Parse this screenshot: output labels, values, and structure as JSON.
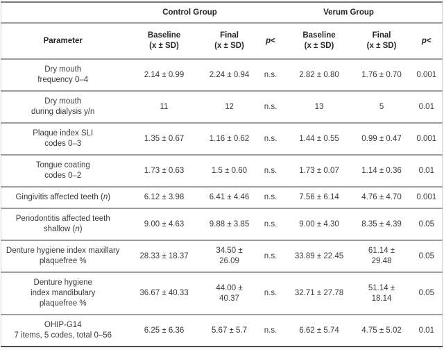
{
  "table": {
    "group_header": {
      "control": "Control Group",
      "verum": "Verum Group"
    },
    "columns": {
      "parameter": "Parameter",
      "baseline": "Baseline",
      "final": "Final",
      "xsd": "(x ± SD)",
      "p_italic": "p",
      "p_rest": "<"
    },
    "rows": [
      {
        "parameter": "Dry mouth\nfrequency 0–4",
        "control_baseline": "2.14 ± 0.99",
        "control_final": "2.24 ± 0.94",
        "control_p": "n.s.",
        "verum_baseline": "2.82 ± 0.80",
        "verum_final": "1.76 ± 0.70",
        "verum_p": "0.001"
      },
      {
        "parameter": "Dry mouth\nduring dialysis y/n",
        "control_baseline": "11",
        "control_final": "12",
        "control_p": "n.s.",
        "verum_baseline": "13",
        "verum_final": "5",
        "verum_p": "0.01"
      },
      {
        "parameter": "Plaque index SLI\ncodes 0–3",
        "control_baseline": "1.35 ± 0.67",
        "control_final": "1.16 ± 0.62",
        "control_p": "n.s.",
        "verum_baseline": "1.44 ± 0.55",
        "verum_final": "0.99 ± 0.47",
        "verum_p": "0.001"
      },
      {
        "parameter": "Tongue coating\ncodes 0–2",
        "control_baseline": "1.73 ± 0.63",
        "control_final": "1.5 ± 0.60",
        "control_p": "n.s.",
        "verum_baseline": "1.73 ± 0.07",
        "verum_final": "1.14 ± 0.36",
        "verum_p": "0.01"
      },
      {
        "parameter": "Gingivitis affected teeth (n)",
        "control_baseline": "6.12 ± 3.98",
        "control_final": "6.41 ± 4.46",
        "control_p": "n.s.",
        "verum_baseline": "7.56 ± 6.14",
        "verum_final": "4.76 ± 4.70",
        "verum_p": "0.001"
      },
      {
        "parameter": "Periodontitis affected teeth\nshallow (n)",
        "control_baseline": "9.00 ± 4.63",
        "control_final": "9.88 ± 3.85",
        "control_p": "n.s.",
        "verum_baseline": "9.00 ± 4.30",
        "verum_final": "8.35 ± 4.39",
        "verum_p": "0.05"
      },
      {
        "parameter": "Denture hygiene index maxillary\nplaquefree %",
        "control_baseline": "28.33 ± 18.37",
        "control_final": "34.50 ± 26.09",
        "control_p": "n.s.",
        "verum_baseline": "33.89 ± 22.45",
        "verum_final": "61.14 ±\n29.48",
        "verum_p": "0.05"
      },
      {
        "parameter": "Denture hygiene\nindex mandibulary\nplaquefree %",
        "control_baseline": "36.67 ± 40.33",
        "control_final": "44.00 ± 40.37",
        "control_p": "n.s.",
        "verum_baseline": "32.71 ± 27.78",
        "verum_final": "51.14 ±\n18.14",
        "verum_p": "0.05"
      },
      {
        "parameter": "OHIP-G14\n7 items, 5 codes, total 0–56",
        "control_baseline": "6.25 ± 6.36",
        "control_final": "5.67 ± 5.7",
        "control_p": "n.s.",
        "verum_baseline": "6.62 ± 5.74",
        "verum_final": "4.75 ± 5.02",
        "verum_p": "0.01"
      }
    ]
  }
}
